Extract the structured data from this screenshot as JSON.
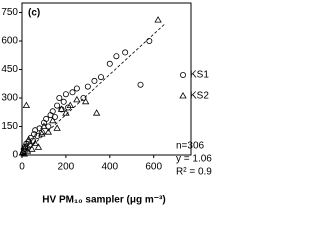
{
  "chart_data": {
    "type": "scatter",
    "panel_label": "(c)",
    "x_label": "HV PM₁₀ sampler (μg m⁻³)",
    "annotations": [
      "n=306",
      "y = 1.06",
      "R² = 0.9"
    ],
    "xlim": [
      0,
      770
    ],
    "ylim": [
      0,
      800
    ],
    "xticks": [
      0,
      200,
      400,
      600
    ],
    "yticks": [
      0,
      150,
      300,
      450,
      600,
      750
    ],
    "fit_slope": 1.06,
    "series": [
      {
        "name": "KS1",
        "marker": "circle",
        "color": "#000000",
        "x": [
          5,
          8,
          12,
          15,
          20,
          25,
          30,
          35,
          40,
          50,
          55,
          60,
          70,
          80,
          90,
          100,
          110,
          120,
          130,
          140,
          150,
          160,
          170,
          180,
          190,
          200,
          210,
          230,
          250,
          280,
          300,
          330,
          360,
          400,
          430,
          470,
          540,
          580
        ],
        "y": [
          10,
          30,
          20,
          45,
          60,
          35,
          70,
          50,
          90,
          75,
          110,
          130,
          100,
          140,
          120,
          170,
          190,
          150,
          210,
          230,
          200,
          260,
          300,
          240,
          280,
          320,
          250,
          330,
          350,
          300,
          360,
          390,
          410,
          480,
          520,
          540,
          370,
          600
        ]
      },
      {
        "name": "KS2",
        "marker": "triangle",
        "color": "#000000",
        "x": [
          5,
          10,
          15,
          25,
          30,
          45,
          60,
          75,
          90,
          100,
          120,
          140,
          160,
          180,
          200,
          220,
          250,
          290,
          340,
          20,
          620
        ],
        "y": [
          15,
          5,
          40,
          20,
          80,
          30,
          60,
          40,
          110,
          150,
          120,
          180,
          140,
          240,
          220,
          260,
          290,
          280,
          220,
          260,
          710
        ]
      }
    ]
  }
}
